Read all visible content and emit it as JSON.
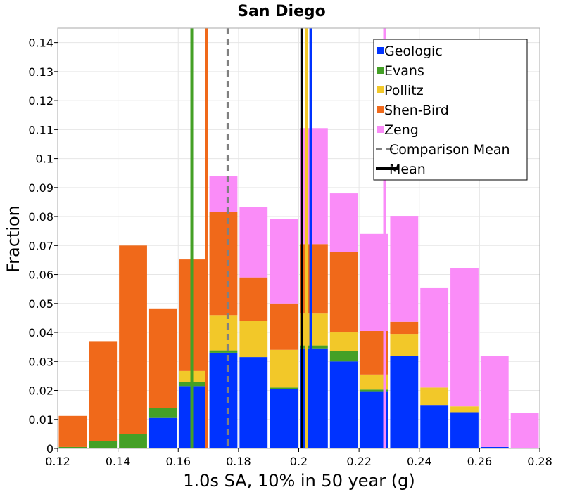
{
  "chart_data": {
    "type": "bar",
    "stacked": true,
    "title": "San Diego",
    "xlabel": "1.0s SA, 10% in 50 year (g)",
    "ylabel": "Fraction",
    "xlim": [
      0.12,
      0.28
    ],
    "ylim": [
      0,
      0.145
    ],
    "grid": true,
    "legend_position": "top-right",
    "bin_width": 0.01,
    "bin_starts": [
      0.12,
      0.13,
      0.14,
      0.15,
      0.16,
      0.17,
      0.18,
      0.19,
      0.2,
      0.21,
      0.22,
      0.23,
      0.24,
      0.25,
      0.26,
      0.27
    ],
    "x_ticks": [
      "0.12",
      "0.14",
      "0.16",
      "0.18",
      "0.2",
      "0.22",
      "0.24",
      "0.26",
      "0.28"
    ],
    "y_ticks": [
      "0",
      "0.01",
      "0.02",
      "0.03",
      "0.04",
      "0.05",
      "0.06",
      "0.07",
      "0.08",
      "0.09",
      "0.1",
      "0.11",
      "0.12",
      "0.13",
      "0.14"
    ],
    "series": [
      {
        "name": "Geologic",
        "color": "#0033ff",
        "values": [
          0.0,
          0.0,
          0.0,
          0.0105,
          0.0215,
          0.033,
          0.0315,
          0.0205,
          0.0345,
          0.03,
          0.0195,
          0.032,
          0.015,
          0.0125,
          0.0005,
          0.0
        ]
      },
      {
        "name": "Evans",
        "color": "#44a026",
        "values": [
          0.0005,
          0.0025,
          0.005,
          0.0035,
          0.0015,
          0.0008,
          0.0,
          0.0005,
          0.001,
          0.0035,
          0.0008,
          0.0,
          0.0,
          0.0,
          0.0,
          0.0
        ]
      },
      {
        "name": "Pollitz",
        "color": "#f2c829",
        "values": [
          0.0,
          0.0,
          0.0,
          0.0,
          0.0037,
          0.0122,
          0.0125,
          0.013,
          0.011,
          0.0065,
          0.0052,
          0.0075,
          0.006,
          0.002,
          0.0,
          0.0
        ]
      },
      {
        "name": "Shen-Bird",
        "color": "#f0691a",
        "values": [
          0.0107,
          0.0345,
          0.065,
          0.0343,
          0.0385,
          0.0355,
          0.015,
          0.016,
          0.024,
          0.0278,
          0.015,
          0.0042,
          0.0,
          0.0,
          0.0,
          0.0
        ]
      },
      {
        "name": "Zeng",
        "color": "#fa8cf8",
        "values": [
          0.0,
          0.0,
          0.0,
          0.0,
          0.0,
          0.0125,
          0.0243,
          0.0292,
          0.04,
          0.0202,
          0.0335,
          0.0363,
          0.0343,
          0.0478,
          0.0315,
          0.0122
        ]
      }
    ],
    "mean_lines": [
      {
        "name": "Geologic",
        "x": 0.204,
        "color": "#0033ff",
        "style": "solid"
      },
      {
        "name": "Evans",
        "x": 0.1645,
        "color": "#44a026",
        "style": "solid"
      },
      {
        "name": "Pollitz",
        "x": 0.2025,
        "color": "#f2c829",
        "style": "solid"
      },
      {
        "name": "Shen-Bird",
        "x": 0.1695,
        "color": "#f0691a",
        "style": "solid"
      },
      {
        "name": "Zeng",
        "x": 0.2285,
        "color": "#fa8cf8",
        "style": "solid"
      },
      {
        "name": "Comparison Mean",
        "x": 0.1765,
        "color": "#808080",
        "style": "dashed"
      },
      {
        "name": "Mean",
        "x": 0.201,
        "color": "#000000",
        "style": "solid"
      }
    ],
    "legend": [
      {
        "label": "Geologic",
        "color": "#0033ff",
        "kind": "box"
      },
      {
        "label": "Evans",
        "color": "#44a026",
        "kind": "box"
      },
      {
        "label": "Pollitz",
        "color": "#f2c829",
        "kind": "box"
      },
      {
        "label": "Shen-Bird",
        "color": "#f0691a",
        "kind": "box"
      },
      {
        "label": "Zeng",
        "color": "#fa8cf8",
        "kind": "box"
      },
      {
        "label": "Comparison Mean",
        "color": "#808080",
        "kind": "dashed"
      },
      {
        "label": "Mean",
        "color": "#000000",
        "kind": "line"
      }
    ]
  }
}
